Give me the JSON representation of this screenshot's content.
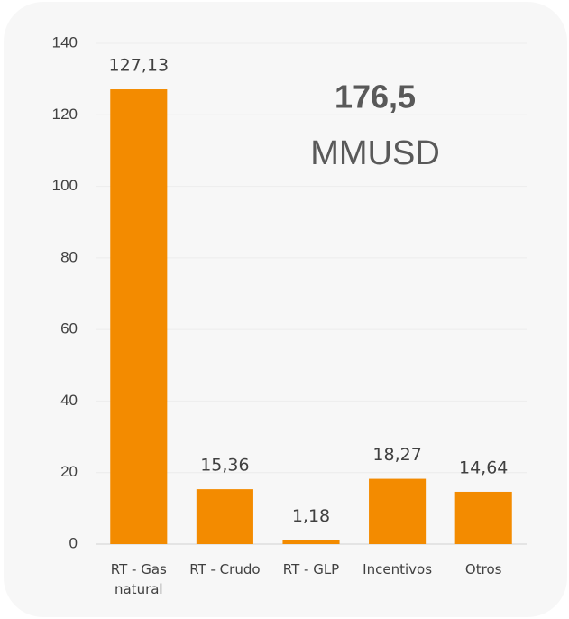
{
  "chart_data": {
    "type": "bar",
    "categories": [
      "RT - Gas natural",
      "RT - Crudo",
      "RT - GLP",
      "Incentivos",
      "Otros"
    ],
    "values": [
      127.13,
      15.36,
      1.18,
      18.27,
      14.64
    ],
    "value_labels": [
      "127,13",
      "15,36",
      "1,18",
      "18,27",
      "14,64"
    ],
    "color": "#f38b00",
    "ylim": [
      0,
      140
    ],
    "yticks": [
      0,
      20,
      40,
      60,
      80,
      100,
      120,
      140
    ],
    "grid": true,
    "annotations": [
      "176,5",
      "MMUSD"
    ]
  }
}
